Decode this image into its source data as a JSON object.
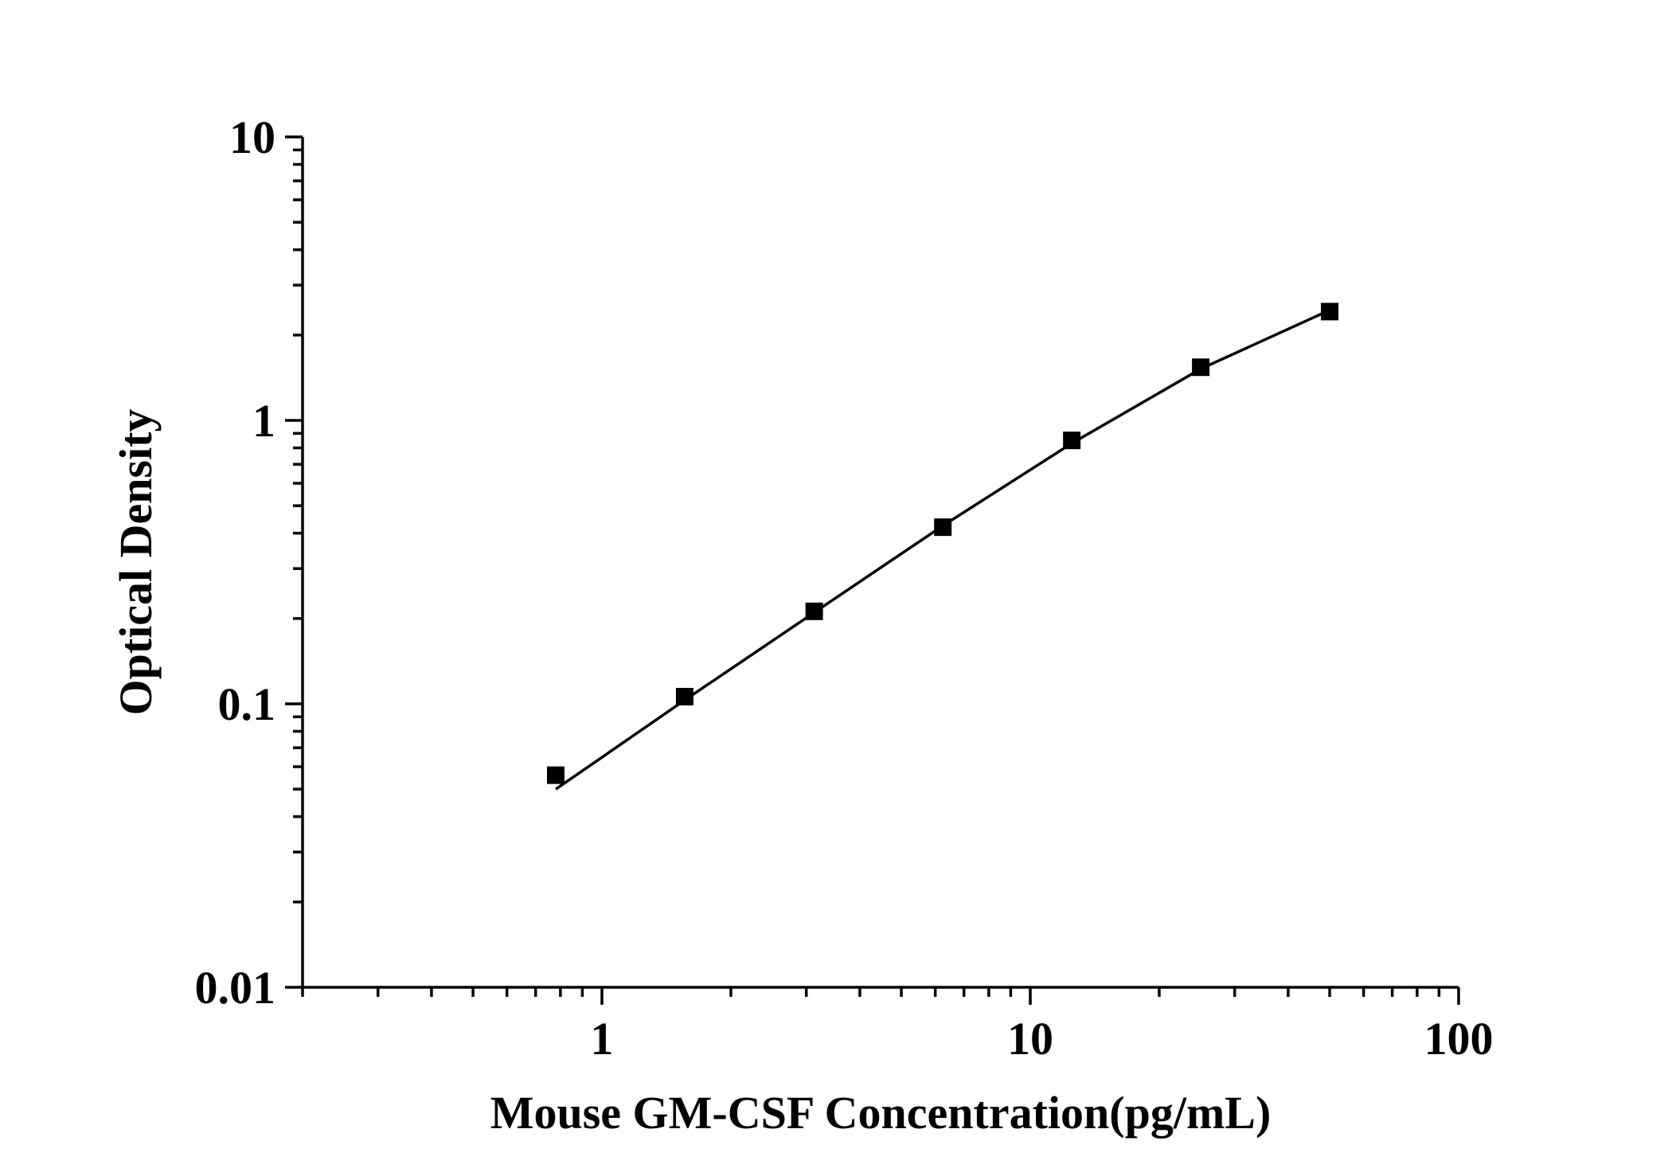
{
  "chart_data": {
    "type": "scatter",
    "title": "",
    "xlabel": "Mouse GM-CSF Concentration(pg/mL)",
    "ylabel": "Optical Density",
    "x_scale": "log",
    "y_scale": "log",
    "xlim": [
      0.2,
      100
    ],
    "ylim": [
      0.01,
      10
    ],
    "x_ticks": [
      {
        "value": 1,
        "label": "1"
      },
      {
        "value": 10,
        "label": "10"
      },
      {
        "value": 100,
        "label": "100"
      }
    ],
    "y_ticks": [
      {
        "value": 0.01,
        "label": "0.01"
      },
      {
        "value": 0.1,
        "label": "0.1"
      },
      {
        "value": 1,
        "label": "1"
      },
      {
        "value": 10,
        "label": "10"
      }
    ],
    "grid": false,
    "legend": "none",
    "series": [
      {
        "marker": "square",
        "color": "#000000",
        "points": [
          {
            "x": 0.78,
            "y": 0.056
          },
          {
            "x": 1.56,
            "y": 0.106
          },
          {
            "x": 3.13,
            "y": 0.212
          },
          {
            "x": 6.25,
            "y": 0.42
          },
          {
            "x": 12.5,
            "y": 0.85
          },
          {
            "x": 25,
            "y": 1.54
          },
          {
            "x": 50,
            "y": 2.42
          }
        ]
      }
    ],
    "fit_curve": {
      "color": "#000000",
      "points": [
        {
          "x": 0.78,
          "y": 0.05
        },
        {
          "x": 1.56,
          "y": 0.103
        },
        {
          "x": 3.13,
          "y": 0.21
        },
        {
          "x": 6.25,
          "y": 0.425
        },
        {
          "x": 12.5,
          "y": 0.83
        },
        {
          "x": 25,
          "y": 1.52
        },
        {
          "x": 50,
          "y": 2.45
        }
      ]
    }
  }
}
